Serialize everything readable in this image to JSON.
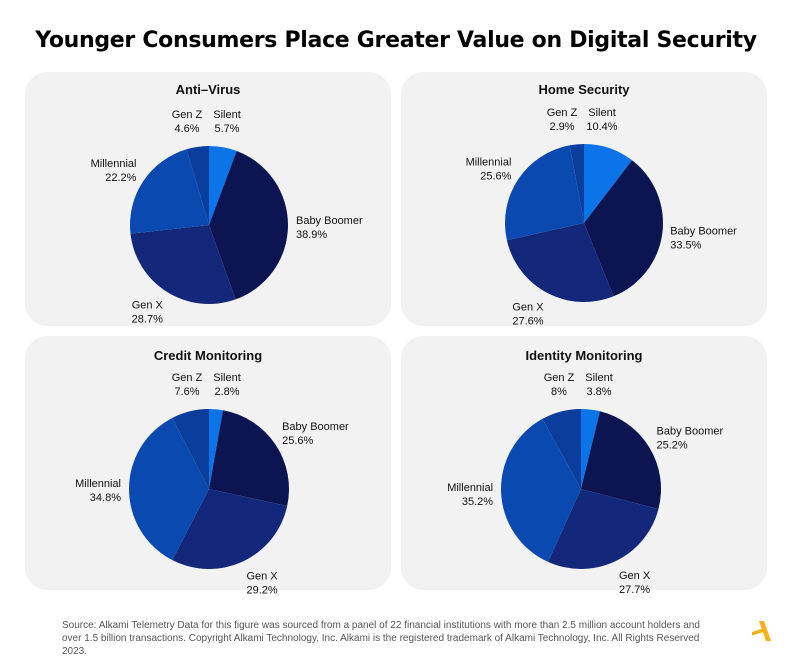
{
  "title": "Younger Consumers Place Greater Value on Digital Security",
  "footer": "Source: Alkami Telemetry Data for this figure was sourced from a panel of 22 financial institutions with more than 2.5 million account holders and over 1.5 billion transactions. Copyright Alkami Technology, Inc. Alkami is the registered trademark of Alkami Technology, Inc. All Rights Reserved 2023.",
  "colors": {
    "Silent": "#0a74e8",
    "Baby Boomer": "#0c1552",
    "Gen X": "#13287a",
    "Millennial": "#0a4ab0",
    "Gen Z": "#0b3d9c",
    "panel_bg": "#f2f2f2",
    "logo": "#f6b318"
  },
  "logo_icon": "alkami-logo-icon",
  "chart_data": [
    {
      "type": "pie",
      "title": "Anti–Virus",
      "labels": [
        "Silent",
        "Baby Boomer",
        "Gen X",
        "Millennial",
        "Gen Z"
      ],
      "values": [
        5.7,
        38.9,
        28.7,
        22.2,
        4.6
      ],
      "value_labels": [
        "5.7%",
        "38.9%",
        "28.7%",
        "22.2%",
        "4.6%"
      ]
    },
    {
      "type": "pie",
      "title": "Home Security",
      "labels": [
        "Silent",
        "Baby Boomer",
        "Gen X",
        "Millennial",
        "Gen Z"
      ],
      "values": [
        10.4,
        33.5,
        27.6,
        25.6,
        2.9
      ],
      "value_labels": [
        "10.4%",
        "33.5%",
        "27.6%",
        "25.6%",
        "2.9%"
      ]
    },
    {
      "type": "pie",
      "title": "Credit Monitoring",
      "labels": [
        "Silent",
        "Baby Boomer",
        "Gen X",
        "Millennial",
        "Gen Z"
      ],
      "values": [
        2.8,
        25.6,
        29.2,
        34.8,
        7.6
      ],
      "value_labels": [
        "2.8%",
        "25.6%",
        "29.2%",
        "34.8%",
        "7.6%"
      ]
    },
    {
      "type": "pie",
      "title": "Identity Monitoring",
      "labels": [
        "Silent",
        "Baby Boomer",
        "Gen X",
        "Millennial",
        "Gen Z"
      ],
      "values": [
        3.8,
        25.2,
        27.7,
        35.2,
        8
      ],
      "value_labels": [
        "3.8%",
        "25.2%",
        "27.7%",
        "35.2%",
        "8%"
      ]
    }
  ]
}
